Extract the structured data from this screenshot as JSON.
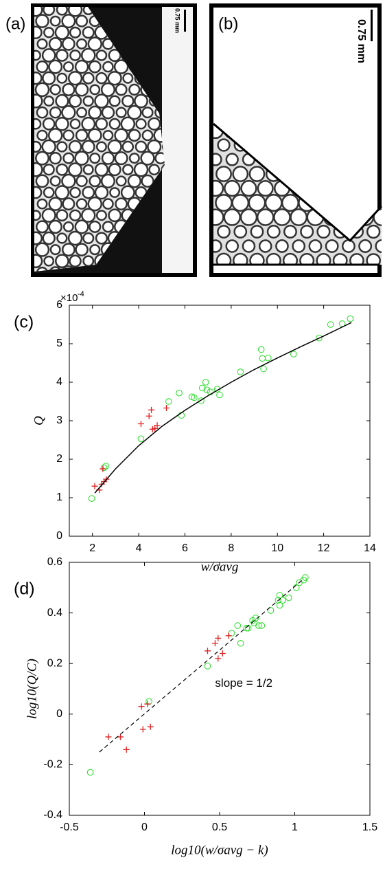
{
  "panels": [
    {
      "label": "(a)",
      "scale": "0.75 mm"
    },
    {
      "label": "(b)",
      "scale": "0.75 mm"
    }
  ],
  "chart_data": [
    {
      "type": "scatter",
      "label": "(c)",
      "xlabel": "w/σavg",
      "ylabel": "Q",
      "multiplier": "×10",
      "exponent": "-4",
      "xlim": [
        1,
        14
      ],
      "xticks": [
        2,
        4,
        6,
        8,
        10,
        12,
        14
      ],
      "ylim": [
        0,
        6
      ],
      "yticks": [
        0,
        1,
        2,
        3,
        4,
        5,
        6
      ],
      "series": [
        {
          "color": "#22dd22",
          "marker": "circle",
          "x": [
            1.97,
            2.5,
            2.58,
            4.1,
            5.3,
            5.75,
            5.85,
            6.3,
            6.4,
            6.7,
            6.75,
            6.9,
            6.95,
            7.1,
            7.4,
            7.5,
            8.4,
            9.3,
            9.35,
            9.4,
            9.6,
            10.7,
            11.8,
            12.3,
            12.8,
            13.15
          ],
          "values": [
            0.98,
            1.78,
            1.82,
            2.53,
            3.5,
            3.72,
            3.14,
            3.62,
            3.6,
            3.52,
            3.85,
            4.0,
            3.8,
            3.75,
            3.82,
            3.67,
            4.27,
            4.85,
            4.62,
            4.35,
            4.63,
            4.73,
            5.15,
            5.5,
            5.52,
            5.65
          ]
        },
        {
          "color": "#e02020",
          "marker": "plus",
          "x": [
            2.1,
            2.3,
            2.4,
            2.45,
            2.5,
            2.6,
            4.1,
            4.45,
            4.55,
            4.6,
            4.7,
            4.8,
            5.2
          ],
          "values": [
            1.3,
            1.2,
            1.35,
            1.75,
            1.42,
            1.48,
            2.92,
            3.12,
            3.28,
            2.78,
            2.8,
            2.88,
            3.33
          ]
        },
        {
          "color": "#000000",
          "marker": "line",
          "x": [
            2.1,
            3,
            4,
            5,
            6,
            7,
            8,
            9,
            10,
            11,
            12,
            13.2
          ],
          "values": [
            1.12,
            1.75,
            2.35,
            2.85,
            3.27,
            3.65,
            4.0,
            4.33,
            4.63,
            4.92,
            5.2,
            5.55
          ]
        }
      ]
    },
    {
      "type": "scatter",
      "label": "(d)",
      "xlabel": "log10(w/σavg − k)",
      "ylabel": "log10(Q/C)",
      "annotation": "slope = 1/2",
      "xlim": [
        -0.5,
        1.5
      ],
      "xticks": [
        -0.5,
        0,
        0.5,
        1,
        1.5
      ],
      "ylim": [
        -0.4,
        0.6
      ],
      "yticks": [
        -0.4,
        -0.2,
        0,
        0.2,
        0.4,
        0.6
      ],
      "series": [
        {
          "color": "#22dd22",
          "marker": "circle",
          "x": [
            -0.36,
            0.03,
            0.42,
            0.58,
            0.62,
            0.64,
            0.68,
            0.69,
            0.72,
            0.73,
            0.74,
            0.76,
            0.78,
            0.84,
            0.89,
            0.9,
            0.9,
            0.92,
            0.96,
            1.01,
            1.03,
            1.06,
            1.07
          ],
          "values": [
            -0.23,
            0.05,
            0.19,
            0.32,
            0.35,
            0.28,
            0.34,
            0.34,
            0.37,
            0.36,
            0.38,
            0.35,
            0.35,
            0.41,
            0.45,
            0.47,
            0.43,
            0.45,
            0.46,
            0.5,
            0.52,
            0.53,
            0.54
          ]
        },
        {
          "color": "#e02020",
          "marker": "plus",
          "x": [
            -0.24,
            -0.16,
            -0.12,
            -0.02,
            -0.01,
            0.02,
            0.04,
            0.42,
            0.47,
            0.49,
            0.49,
            0.52,
            0.56
          ],
          "values": [
            -0.09,
            -0.09,
            -0.14,
            0.03,
            -0.06,
            0.04,
            -0.05,
            0.25,
            0.28,
            0.3,
            0.22,
            0.24,
            0.31
          ]
        },
        {
          "color": "#000000",
          "marker": "dashed",
          "x": [
            -0.3,
            1.05
          ],
          "values": [
            -0.15,
            0.53
          ]
        }
      ]
    }
  ]
}
